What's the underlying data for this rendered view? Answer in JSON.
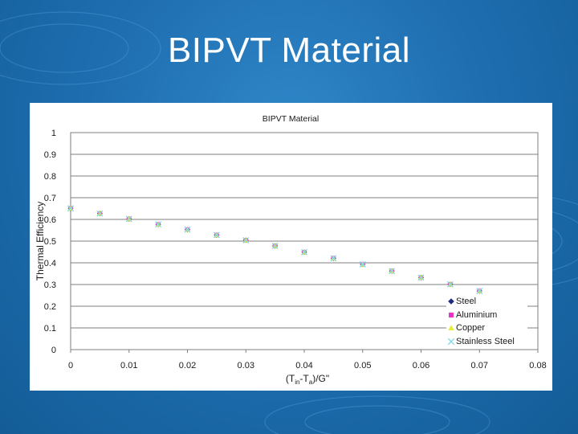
{
  "slide": {
    "title": "BIPVT Material"
  },
  "chart_data": {
    "type": "scatter",
    "title": "BIPVT Material",
    "xlabel_parts": [
      "(T",
      "in",
      "-T",
      "a",
      ")/G\""
    ],
    "ylabel": "Thermal Efficiency",
    "xlim": [
      0,
      0.08
    ],
    "ylim": [
      0,
      1
    ],
    "x_ticks": [
      "0",
      "0.01",
      "0.02",
      "0.03",
      "0.04",
      "0.05",
      "0.06",
      "0.07",
      "0.08"
    ],
    "y_ticks": [
      "0",
      "0.1",
      "0.2",
      "0.3",
      "0.4",
      "0.5",
      "0.6",
      "0.7",
      "0.8",
      "0.9",
      "1"
    ],
    "grid": "horizontal",
    "legend_position": "bottom-right",
    "x": [
      0,
      0.005,
      0.01,
      0.015,
      0.02,
      0.025,
      0.03,
      0.035,
      0.04,
      0.045,
      0.05,
      0.055,
      0.06,
      0.065,
      0.07
    ],
    "series": [
      {
        "name": "Steel",
        "marker": "diamond",
        "color": "#1f2a80",
        "values": [
          0.651,
          0.627,
          0.602,
          0.577,
          0.553,
          0.528,
          0.504,
          0.478,
          0.449,
          0.421,
          0.393,
          0.362,
          0.332,
          0.301,
          0.27
        ]
      },
      {
        "name": "Aluminium",
        "marker": "square",
        "color": "#e833c8",
        "values": [
          0.651,
          0.627,
          0.602,
          0.577,
          0.553,
          0.528,
          0.504,
          0.478,
          0.449,
          0.421,
          0.393,
          0.362,
          0.332,
          0.301,
          0.27
        ]
      },
      {
        "name": "Copper",
        "marker": "triangle",
        "color": "#e6ee3a",
        "values": [
          0.651,
          0.627,
          0.602,
          0.577,
          0.553,
          0.528,
          0.504,
          0.478,
          0.449,
          0.421,
          0.393,
          0.362,
          0.332,
          0.301,
          0.27
        ]
      },
      {
        "name": "Stainless Steel",
        "marker": "x",
        "color": "#7fd7e8",
        "values": [
          0.651,
          0.627,
          0.602,
          0.577,
          0.553,
          0.528,
          0.504,
          0.478,
          0.449,
          0.421,
          0.393,
          0.362,
          0.332,
          0.301,
          0.27
        ]
      }
    ]
  }
}
